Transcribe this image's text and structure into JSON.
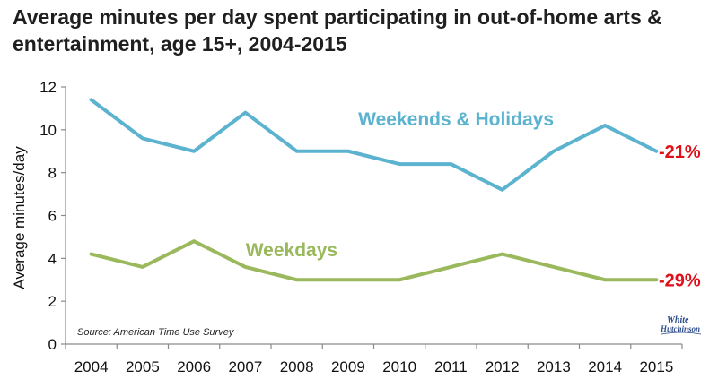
{
  "chart_data": {
    "type": "line",
    "title": "Average minutes per day spent participating in out-of-home arts & entertainment, age 15+, 2004-2015",
    "ylabel": "Average minutes/day",
    "xlabel": "",
    "x": [
      "2004",
      "2005",
      "2006",
      "2007",
      "2008",
      "2009",
      "2010",
      "2011",
      "2012",
      "2013",
      "2014",
      "2015"
    ],
    "ylim": [
      0,
      12
    ],
    "yticks": [
      "0",
      "2",
      "4",
      "6",
      "8",
      "10",
      "12"
    ],
    "grid": false,
    "series": [
      {
        "name": "Weekends & Holidays",
        "color": "#5bb3cf",
        "values": [
          11.4,
          9.6,
          9.0,
          10.8,
          9.0,
          9.0,
          8.4,
          8.4,
          7.2,
          9.0,
          10.2,
          9.0
        ],
        "change_label": "-21%"
      },
      {
        "name": "Weekdays",
        "color": "#9ab85c",
        "values": [
          4.2,
          3.6,
          4.8,
          3.6,
          3.0,
          3.0,
          3.0,
          3.6,
          4.2,
          3.6,
          3.0,
          3.0
        ],
        "change_label": "-29%"
      }
    ],
    "change_color": "#e0101a",
    "source": "Source: American Time Use Survey",
    "logo_text": [
      "White",
      "Hutchinson"
    ]
  }
}
